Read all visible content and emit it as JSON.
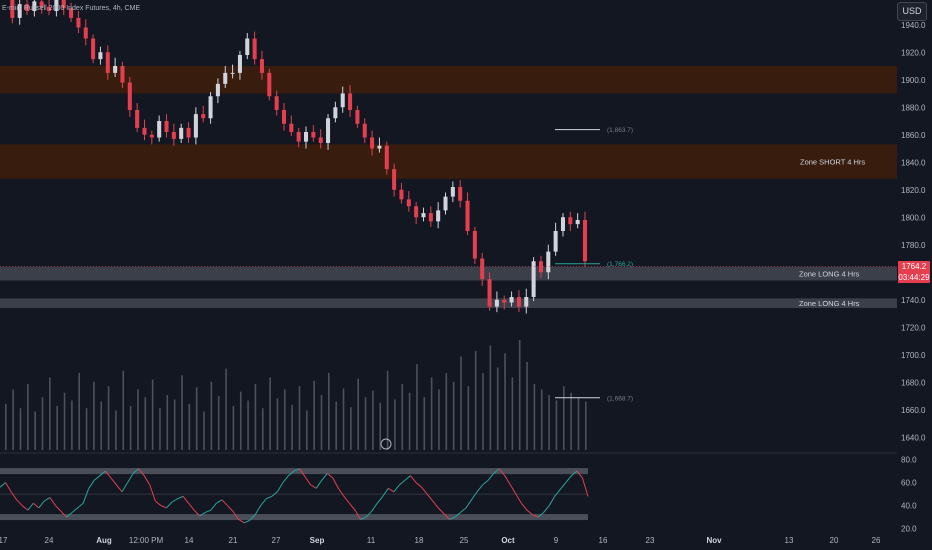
{
  "header": {
    "title": "E-mini Russell 2000 Index Futures, 4h, CME",
    "currency": "USD"
  },
  "last_price": {
    "value": "1764.2",
    "countdown": "03:44:29"
  },
  "colors": {
    "background": "#131722",
    "up": "#d1d4dc",
    "down": "#e53f4f",
    "zone_short": "#3a1e0f",
    "zone_long": "#4a4e58",
    "rsi": "#26a69a",
    "rsi_band": "#4a4e58"
  },
  "chart_data": [
    {
      "type": "candlestick",
      "title": "",
      "xlabel": "",
      "ylabel": "",
      "x_tick_labels": [
        "17",
        "24",
        "Aug",
        "12:00 PM",
        "14",
        "21",
        "27",
        "Sep",
        "11",
        "18",
        "25",
        "Oct",
        "9",
        "16",
        "23",
        "Nov",
        "13",
        "20",
        "26"
      ],
      "y_tick_labels": [
        "1640.0",
        "1660.0",
        "1680.0",
        "1700.0",
        "1720.0",
        "1740.0",
        "1760.0",
        "1780.0",
        "1800.0",
        "1820.0",
        "1840.0",
        "1860.0",
        "1880.0",
        "1900.0",
        "1920.0",
        "1940.0"
      ],
      "ylim": [
        1622,
        1958
      ],
      "grid": false,
      "zones": [
        {
          "label": "",
          "range": [
            1890,
            1910
          ]
        },
        {
          "label": "Zone SHORT 4 Hrs",
          "range": [
            1828,
            1853
          ]
        },
        {
          "label": "Zone LONG 4 Hrs",
          "range": [
            1754,
            1764
          ]
        },
        {
          "label": "Zone LONG 4 Hrs",
          "range": [
            1734,
            1741
          ]
        }
      ],
      "annotations": [
        {
          "text": "(1,863.7)",
          "y": 1863.7
        },
        {
          "text": "(1,766.2)",
          "y": 1766.2
        },
        {
          "text": "(1,668.7)",
          "y": 1668.7
        }
      ],
      "close_path": [
        1958,
        1945,
        1955,
        1950,
        1957,
        1953,
        1950,
        1958,
        1952,
        1945,
        1938,
        1930,
        1915,
        1920,
        1905,
        1910,
        1898,
        1878,
        1865,
        1860,
        1858,
        1870,
        1862,
        1857,
        1865,
        1858,
        1875,
        1872,
        1888,
        1897,
        1905,
        1905,
        1918,
        1930,
        1915,
        1905,
        1888,
        1878,
        1868,
        1862,
        1855,
        1862,
        1858,
        1854,
        1872,
        1880,
        1890,
        1878,
        1868,
        1858,
        1850,
        1852,
        1835,
        1820,
        1813,
        1808,
        1800,
        1803,
        1797,
        1805,
        1815,
        1822,
        1812,
        1790,
        1770,
        1755,
        1735,
        1740,
        1738,
        1742,
        1735,
        1742,
        1768,
        1760,
        1775,
        1790,
        1800,
        1795,
        1798,
        1768
      ],
      "volume": [
        42,
        55,
        38,
        60,
        35,
        48,
        66,
        40,
        52,
        45,
        70,
        38,
        62,
        44,
        58,
        36,
        72,
        40,
        55,
        48,
        64,
        38,
        50,
        46,
        68,
        42,
        57,
        35,
        62,
        49,
        74,
        40,
        53,
        45,
        60,
        38,
        66,
        47,
        55,
        41,
        58,
        36,
        63,
        50,
        70,
        44,
        56,
        39,
        65,
        48,
        54,
        43,
        72,
        46,
        60,
        52,
        78,
        48,
        66,
        55,
        70,
        62,
        85,
        58,
        90,
        70,
        95,
        75,
        88,
        66,
        100,
        80,
        60,
        55,
        50,
        45,
        58,
        52,
        48,
        44
      ]
    },
    {
      "type": "line",
      "title": "",
      "xlabel": "",
      "ylabel": "",
      "y_tick_labels": [
        "20.0",
        "40.0",
        "60.0",
        "80.0"
      ],
      "ylim": [
        17,
        84
      ],
      "bands": [
        30,
        70
      ],
      "mid": 50,
      "values": [
        56,
        60,
        52,
        45,
        40,
        36,
        42,
        38,
        44,
        47,
        40,
        35,
        30,
        34,
        38,
        42,
        55,
        62,
        66,
        70,
        64,
        58,
        52,
        60,
        68,
        72,
        66,
        58,
        44,
        40,
        38,
        43,
        46,
        48,
        42,
        36,
        31,
        34,
        36,
        42,
        45,
        40,
        35,
        28,
        25,
        27,
        32,
        40,
        46,
        48,
        52,
        60,
        66,
        70,
        72,
        65,
        58,
        55,
        62,
        68,
        64,
        55,
        48,
        42,
        36,
        28,
        30,
        35,
        42,
        48,
        55,
        52,
        58,
        62,
        66,
        60,
        56,
        50,
        44,
        38,
        33,
        28,
        30,
        34,
        38,
        45,
        52,
        58,
        62,
        68,
        72,
        66,
        58,
        50,
        42,
        36,
        32,
        30,
        34,
        40,
        48,
        54,
        60,
        66,
        70,
        64,
        48
      ]
    }
  ]
}
